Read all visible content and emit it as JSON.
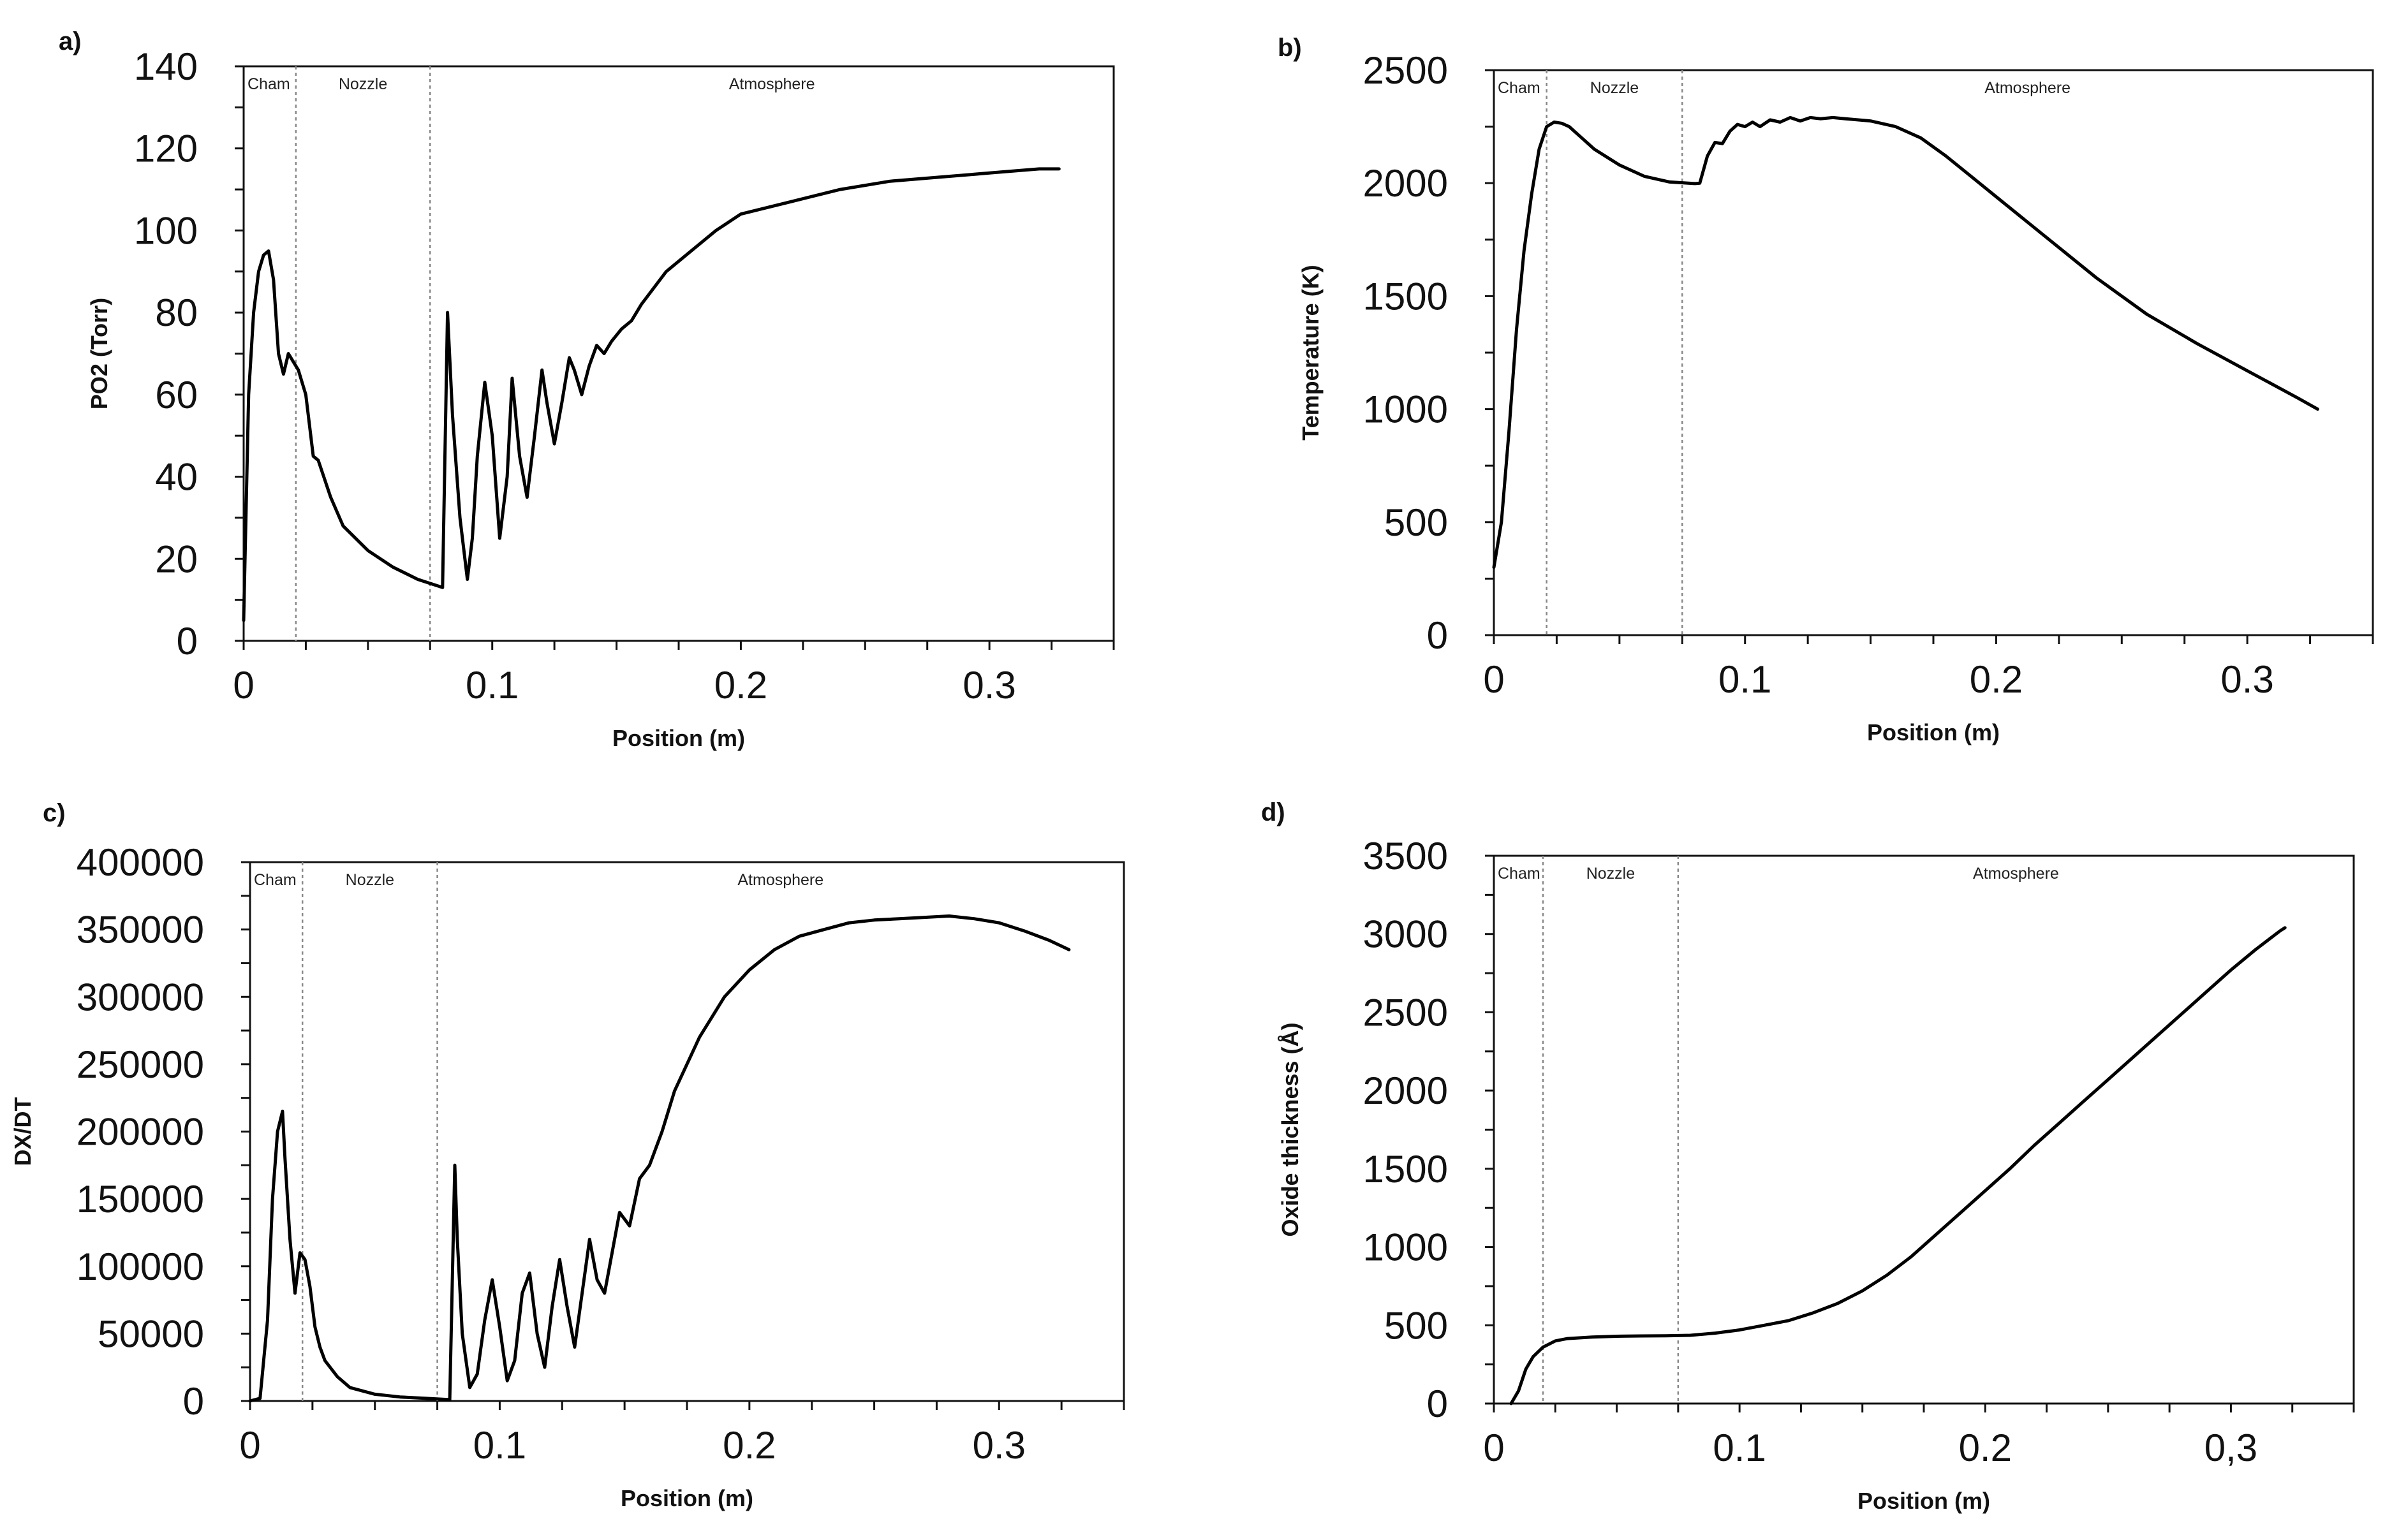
{
  "chart_data": [
    {
      "panel": "a)",
      "type": "line",
      "title": "",
      "xlabel": "Position (m)",
      "ylabel": "PO2 (Torr)",
      "xlim": [
        0,
        0.35
      ],
      "ylim": [
        0,
        140
      ],
      "xticks": [
        0,
        0.1,
        0.2,
        0.3
      ],
      "xtick_labels": [
        "0",
        "0.1",
        "0.2",
        "0.3"
      ],
      "yticks": [
        0,
        20,
        40,
        60,
        80,
        100,
        120,
        140
      ],
      "ytick_labels": [
        "0",
        "20",
        "40",
        "60",
        "80",
        "100",
        "120",
        "140"
      ],
      "regions": [
        {
          "label": "Cham",
          "start": 0
        },
        {
          "label": "Nozzle",
          "start": 0.021
        },
        {
          "label": "Atmosphere",
          "start": 0.075
        }
      ],
      "x": [
        0,
        0.002,
        0.004,
        0.006,
        0.008,
        0.01,
        0.012,
        0.014,
        0.016,
        0.018,
        0.02,
        0.022,
        0.025,
        0.028,
        0.03,
        0.035,
        0.04,
        0.05,
        0.06,
        0.07,
        0.075,
        0.08,
        0.082,
        0.084,
        0.087,
        0.09,
        0.092,
        0.094,
        0.097,
        0.1,
        0.103,
        0.106,
        0.108,
        0.111,
        0.114,
        0.117,
        0.12,
        0.122,
        0.125,
        0.128,
        0.131,
        0.133,
        0.136,
        0.139,
        0.142,
        0.145,
        0.148,
        0.152,
        0.156,
        0.16,
        0.165,
        0.17,
        0.18,
        0.19,
        0.2,
        0.22,
        0.24,
        0.26,
        0.28,
        0.3,
        0.32,
        0.328
      ],
      "values": [
        5,
        60,
        80,
        90,
        94,
        95,
        88,
        70,
        65,
        70,
        68,
        66,
        60,
        45,
        44,
        35,
        28,
        22,
        18,
        15,
        14,
        13,
        80,
        55,
        30,
        15,
        25,
        45,
        63,
        50,
        25,
        40,
        64,
        45,
        35,
        50,
        66,
        58,
        48,
        58,
        69,
        66,
        60,
        67,
        72,
        70,
        73,
        76,
        78,
        82,
        86,
        90,
        95,
        100,
        104,
        107,
        110,
        112,
        113,
        114,
        115,
        115
      ]
    },
    {
      "panel": "b)",
      "type": "line",
      "title": "",
      "xlabel": "Position (m)",
      "ylabel": "Temperature (K)",
      "xlim": [
        0,
        0.35
      ],
      "ylim": [
        0,
        2500
      ],
      "xticks": [
        0,
        0.1,
        0.2,
        0.3
      ],
      "xtick_labels": [
        "0",
        "0.1",
        "0.2",
        "0.3"
      ],
      "yticks": [
        0,
        500,
        1000,
        1500,
        2000,
        2500
      ],
      "ytick_labels": [
        "0",
        "500",
        "1000",
        "1500",
        "2000",
        "2500"
      ],
      "regions": [
        {
          "label": "Cham",
          "start": 0
        },
        {
          "label": "Nozzle",
          "start": 0.021
        },
        {
          "label": "Atmosphere",
          "start": 0.075
        }
      ],
      "x": [
        0,
        0.003,
        0.006,
        0.009,
        0.012,
        0.015,
        0.018,
        0.021,
        0.024,
        0.027,
        0.03,
        0.035,
        0.04,
        0.05,
        0.06,
        0.07,
        0.08,
        0.082,
        0.085,
        0.088,
        0.091,
        0.094,
        0.097,
        0.1,
        0.103,
        0.106,
        0.11,
        0.114,
        0.118,
        0.122,
        0.126,
        0.13,
        0.135,
        0.14,
        0.15,
        0.16,
        0.17,
        0.18,
        0.19,
        0.2,
        0.22,
        0.24,
        0.26,
        0.28,
        0.3,
        0.32,
        0.328
      ],
      "values": [
        300,
        500,
        900,
        1350,
        1700,
        1950,
        2150,
        2250,
        2270,
        2265,
        2250,
        2200,
        2150,
        2080,
        2030,
        2005,
        1998,
        2000,
        2120,
        2180,
        2175,
        2230,
        2260,
        2250,
        2270,
        2250,
        2280,
        2270,
        2290,
        2275,
        2290,
        2285,
        2290,
        2285,
        2275,
        2250,
        2200,
        2120,
        2030,
        1940,
        1760,
        1580,
        1420,
        1290,
        1170,
        1050,
        1000
      ]
    },
    {
      "panel": "c)",
      "type": "line",
      "title": "",
      "xlabel": "Position (m)",
      "ylabel": "DX/DT",
      "xlim": [
        0,
        0.35
      ],
      "ylim": [
        0,
        400000
      ],
      "xticks": [
        0,
        0.1,
        0.2,
        0.3
      ],
      "xtick_labels": [
        "0",
        "0.1",
        "0.2",
        "0.3"
      ],
      "yticks": [
        0,
        50000,
        100000,
        150000,
        200000,
        250000,
        300000,
        350000,
        400000
      ],
      "ytick_labels": [
        "0",
        "50000",
        "100000",
        "150000",
        "200000",
        "250000",
        "300000",
        "350000",
        "400000"
      ],
      "regions": [
        {
          "label": "Cham",
          "start": 0
        },
        {
          "label": "Nozzle",
          "start": 0.021
        },
        {
          "label": "Atmosphere",
          "start": 0.075
        }
      ],
      "x": [
        0,
        0.004,
        0.007,
        0.009,
        0.011,
        0.013,
        0.014,
        0.016,
        0.018,
        0.02,
        0.022,
        0.024,
        0.026,
        0.028,
        0.03,
        0.035,
        0.04,
        0.05,
        0.06,
        0.07,
        0.08,
        0.082,
        0.083,
        0.085,
        0.088,
        0.091,
        0.094,
        0.097,
        0.1,
        0.103,
        0.106,
        0.109,
        0.112,
        0.115,
        0.118,
        0.121,
        0.124,
        0.127,
        0.13,
        0.133,
        0.136,
        0.139,
        0.142,
        0.145,
        0.148,
        0.152,
        0.156,
        0.16,
        0.165,
        0.17,
        0.18,
        0.19,
        0.2,
        0.21,
        0.22,
        0.23,
        0.24,
        0.25,
        0.26,
        0.27,
        0.28,
        0.29,
        0.3,
        0.31,
        0.32,
        0.328
      ],
      "values": [
        0,
        2000,
        60000,
        150000,
        200000,
        215000,
        180000,
        120000,
        80000,
        110000,
        105000,
        85000,
        55000,
        40000,
        30000,
        18000,
        10000,
        5000,
        3000,
        2000,
        1000,
        175000,
        120000,
        50000,
        10000,
        20000,
        60000,
        90000,
        55000,
        15000,
        30000,
        80000,
        95000,
        50000,
        25000,
        70000,
        105000,
        70000,
        40000,
        80000,
        120000,
        90000,
        80000,
        110000,
        140000,
        130000,
        165000,
        175000,
        200000,
        230000,
        270000,
        300000,
        320000,
        335000,
        345000,
        350000,
        355000,
        357000,
        358000,
        359000,
        360000,
        358000,
        355000,
        349000,
        342000,
        335000
      ]
    },
    {
      "panel": "d)",
      "type": "line",
      "title": "",
      "xlabel": "Position (m)",
      "ylabel": "Oxide thickness (Å)",
      "xlim": [
        0,
        0.35
      ],
      "ylim": [
        0,
        3500
      ],
      "xticks": [
        0,
        0.1,
        0.2,
        0.3
      ],
      "xtick_labels": [
        "0",
        "0.1",
        "0.2",
        "0,3"
      ],
      "yticks": [
        0,
        500,
        1000,
        1500,
        2000,
        2500,
        3000,
        3500
      ],
      "ytick_labels": [
        "0",
        "500",
        "1000",
        "1500",
        "2000",
        "2500",
        "3000",
        "3500"
      ],
      "regions": [
        {
          "label": "Cham",
          "start": 0
        },
        {
          "label": "Nozzle",
          "start": 0.02
        },
        {
          "label": "Atmosphere",
          "start": 0.075
        }
      ],
      "x": [
        0.007,
        0.01,
        0.013,
        0.016,
        0.02,
        0.025,
        0.03,
        0.04,
        0.05,
        0.06,
        0.07,
        0.08,
        0.09,
        0.1,
        0.11,
        0.12,
        0.13,
        0.14,
        0.15,
        0.16,
        0.17,
        0.18,
        0.19,
        0.2,
        0.21,
        0.22,
        0.23,
        0.24,
        0.25,
        0.26,
        0.27,
        0.28,
        0.29,
        0.3,
        0.31,
        0.32,
        0.322
      ],
      "values": [
        0,
        80,
        220,
        300,
        360,
        400,
        415,
        425,
        430,
        432,
        433,
        436,
        450,
        470,
        500,
        530,
        580,
        640,
        720,
        820,
        940,
        1080,
        1220,
        1360,
        1500,
        1650,
        1790,
        1930,
        2070,
        2210,
        2350,
        2490,
        2630,
        2770,
        2900,
        3020,
        3040
      ]
    }
  ]
}
